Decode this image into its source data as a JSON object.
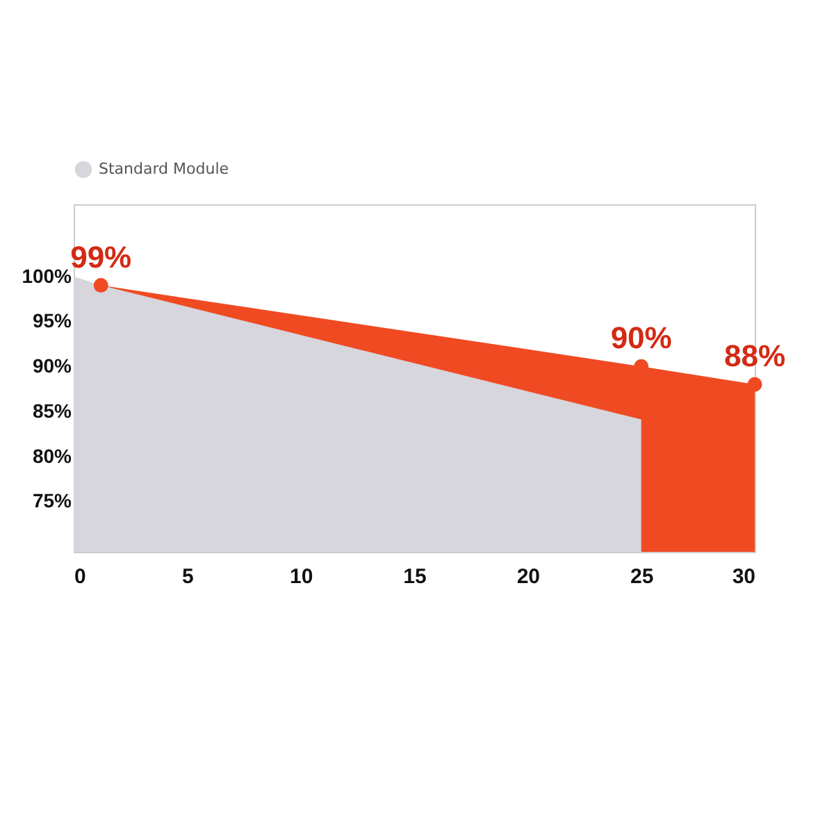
{
  "chart_data": {
    "type": "area",
    "xlim": [
      0,
      30
    ],
    "ylim": [
      69.4,
      108
    ],
    "xticks": [
      0,
      5,
      10,
      15,
      20,
      25,
      30
    ],
    "yticks": [
      {
        "value": 75,
        "label": "75%"
      },
      {
        "value": 80,
        "label": "80%"
      },
      {
        "value": 85,
        "label": "85%"
      },
      {
        "value": 90,
        "label": "90%"
      },
      {
        "value": 95,
        "label": "95%"
      },
      {
        "value": 100,
        "label": "100%"
      }
    ],
    "grid": false,
    "legend": "top",
    "series": [
      {
        "color": "#f04a23",
        "x": [
          1.2,
          25,
          30
        ],
        "values": [
          99,
          90,
          88
        ],
        "marker": "circle",
        "value_labels": [
          "99%",
          "90%",
          "88%"
        ]
      },
      {
        "name": "Standard Module",
        "color": "#d6d6dc",
        "x": [
          0,
          1.2,
          25
        ],
        "values": [
          100,
          99,
          84.1
        ]
      }
    ]
  }
}
